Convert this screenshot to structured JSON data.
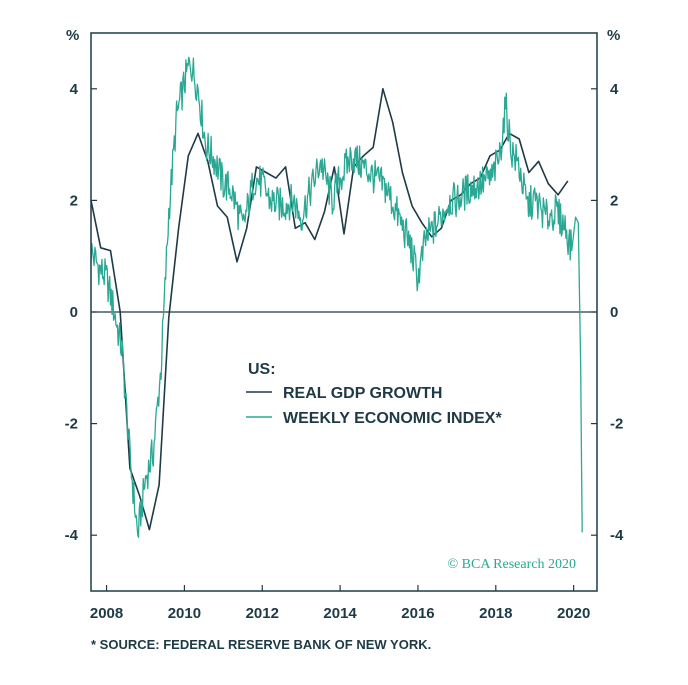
{
  "chart_data": {
    "type": "line",
    "title": "",
    "unit_left": "%",
    "unit_right": "%",
    "xlim": [
      2007.6,
      2020.6
    ],
    "ylim": [
      -5,
      5
    ],
    "x_ticks": [
      2008,
      2010,
      2012,
      2014,
      2016,
      2018,
      2020
    ],
    "x_tick_labels": [
      "2008",
      "2010",
      "2012",
      "2014",
      "2016",
      "2018",
      "2020"
    ],
    "y_ticks": [
      -4,
      -2,
      0,
      2,
      4
    ],
    "y_tick_labels": [
      "-4",
      "-2",
      "0",
      "2",
      "4"
    ],
    "legend_title": "US:",
    "series": [
      {
        "name": "REAL GDP GROWTH",
        "color": "#1e3a46",
        "points": [
          [
            2007.6,
            2.0
          ],
          [
            2007.85,
            1.15
          ],
          [
            2008.1,
            1.1
          ],
          [
            2008.35,
            0.0
          ],
          [
            2008.6,
            -2.8
          ],
          [
            2008.85,
            -3.3
          ],
          [
            2009.1,
            -3.9
          ],
          [
            2009.35,
            -3.1
          ],
          [
            2009.6,
            -0.1
          ],
          [
            2009.85,
            1.5
          ],
          [
            2010.1,
            2.8
          ],
          [
            2010.35,
            3.2
          ],
          [
            2010.6,
            2.7
          ],
          [
            2010.85,
            1.9
          ],
          [
            2011.1,
            1.7
          ],
          [
            2011.35,
            0.9
          ],
          [
            2011.6,
            1.5
          ],
          [
            2011.85,
            2.6
          ],
          [
            2012.1,
            2.5
          ],
          [
            2012.35,
            2.4
          ],
          [
            2012.6,
            2.6
          ],
          [
            2012.85,
            1.5
          ],
          [
            2013.1,
            1.6
          ],
          [
            2013.35,
            1.3
          ],
          [
            2013.6,
            1.8
          ],
          [
            2013.85,
            2.6
          ],
          [
            2014.1,
            1.4
          ],
          [
            2014.35,
            2.6
          ],
          [
            2014.6,
            2.8
          ],
          [
            2014.85,
            2.95
          ],
          [
            2015.1,
            4.0
          ],
          [
            2015.35,
            3.4
          ],
          [
            2015.6,
            2.5
          ],
          [
            2015.85,
            1.9
          ],
          [
            2016.1,
            1.6
          ],
          [
            2016.35,
            1.35
          ],
          [
            2016.6,
            1.5
          ],
          [
            2016.85,
            2.0
          ],
          [
            2017.1,
            2.1
          ],
          [
            2017.35,
            2.3
          ],
          [
            2017.6,
            2.4
          ],
          [
            2017.85,
            2.8
          ],
          [
            2018.1,
            2.9
          ],
          [
            2018.35,
            3.2
          ],
          [
            2018.6,
            3.1
          ],
          [
            2018.85,
            2.5
          ],
          [
            2019.1,
            2.7
          ],
          [
            2019.35,
            2.3
          ],
          [
            2019.6,
            2.1
          ],
          [
            2019.85,
            2.35
          ]
        ]
      },
      {
        "name": "WEEKLY ECONOMIC INDEX*",
        "color": "#2aa894",
        "points": [
          [
            2007.6,
            1.1
          ],
          [
            2007.8,
            0.8
          ],
          [
            2008.0,
            0.6
          ],
          [
            2008.2,
            0.0
          ],
          [
            2008.4,
            -0.7
          ],
          [
            2008.6,
            -2.6
          ],
          [
            2008.8,
            -4.0
          ],
          [
            2009.0,
            -3.0
          ],
          [
            2009.2,
            -2.5
          ],
          [
            2009.4,
            -1.0
          ],
          [
            2009.6,
            1.8
          ],
          [
            2009.8,
            3.5
          ],
          [
            2010.0,
            4.1
          ],
          [
            2010.15,
            4.5
          ],
          [
            2010.35,
            4.0
          ],
          [
            2010.55,
            3.0
          ],
          [
            2010.8,
            2.7
          ],
          [
            2011.0,
            2.3
          ],
          [
            2011.2,
            2.2
          ],
          [
            2011.5,
            1.5
          ],
          [
            2011.8,
            2.4
          ],
          [
            2012.0,
            2.3
          ],
          [
            2012.2,
            2.0
          ],
          [
            2012.5,
            1.9
          ],
          [
            2012.8,
            2.0
          ],
          [
            2013.0,
            1.7
          ],
          [
            2013.2,
            2.1
          ],
          [
            2013.5,
            2.7
          ],
          [
            2013.8,
            2.0
          ],
          [
            2014.0,
            2.4
          ],
          [
            2014.3,
            2.8
          ],
          [
            2014.6,
            2.6
          ],
          [
            2014.9,
            2.4
          ],
          [
            2015.2,
            2.2
          ],
          [
            2015.5,
            1.7
          ],
          [
            2015.8,
            1.2
          ],
          [
            2016.0,
            0.6
          ],
          [
            2016.2,
            1.3
          ],
          [
            2016.5,
            1.6
          ],
          [
            2016.8,
            2.0
          ],
          [
            2017.0,
            2.0
          ],
          [
            2017.3,
            2.2
          ],
          [
            2017.6,
            2.3
          ],
          [
            2017.9,
            2.4
          ],
          [
            2018.1,
            2.8
          ],
          [
            2018.25,
            3.7
          ],
          [
            2018.4,
            2.9
          ],
          [
            2018.6,
            2.6
          ],
          [
            2018.8,
            1.9
          ],
          [
            2019.0,
            2.0
          ],
          [
            2019.3,
            1.7
          ],
          [
            2019.55,
            1.8
          ],
          [
            2019.8,
            1.5
          ],
          [
            2019.95,
            1.1
          ],
          [
            2020.05,
            1.7
          ],
          [
            2020.12,
            1.6
          ],
          [
            2020.18,
            -1.0
          ],
          [
            2020.22,
            -3.95
          ]
        ]
      }
    ],
    "copyright": "© BCA Research 2020",
    "footnote": "* SOURCE: FEDERAL RESERVE BANK OF NEW YORK."
  }
}
